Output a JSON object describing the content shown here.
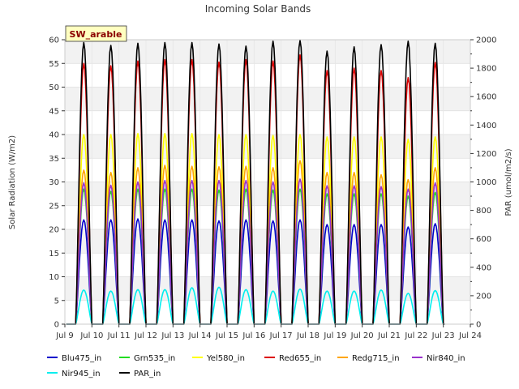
{
  "chart_data": {
    "type": "line",
    "title": "Incoming Solar Bands",
    "site_label": "SW_arable",
    "ylabel": "Solar Radiation (W/m2)",
    "y2label": "PAR (umol/m2/s)",
    "xlabel": "",
    "xlim": [
      9,
      24
    ],
    "ylim": [
      0,
      60
    ],
    "y2lim": [
      0,
      2000
    ],
    "x_ticks": [
      {
        "value": 9,
        "label": "Jul 9"
      },
      {
        "value": 10,
        "label": "Jul 10"
      },
      {
        "value": 11,
        "label": "Jul 11"
      },
      {
        "value": 12,
        "label": "Jul 12"
      },
      {
        "value": 13,
        "label": "Jul 13"
      },
      {
        "value": 14,
        "label": "Jul 14"
      },
      {
        "value": 15,
        "label": "Jul 15"
      },
      {
        "value": 16,
        "label": "Jul 16"
      },
      {
        "value": 17,
        "label": "Jul 17"
      },
      {
        "value": 18,
        "label": "Jul 18"
      },
      {
        "value": 19,
        "label": "Jul 19"
      },
      {
        "value": 20,
        "label": "Jul 20"
      },
      {
        "value": 21,
        "label": "Jul 21"
      },
      {
        "value": 22,
        "label": "Jul 22"
      },
      {
        "value": 23,
        "label": "Jul 23"
      },
      {
        "value": 24,
        "label": "Jul 24"
      }
    ],
    "y_ticks": [
      0,
      5,
      10,
      15,
      20,
      25,
      30,
      35,
      40,
      45,
      50,
      55,
      60
    ],
    "y2_ticks": [
      0,
      200,
      400,
      600,
      800,
      1000,
      1200,
      1400,
      1600,
      1800,
      2000
    ],
    "days": [
      9.7,
      10.7,
      11.7,
      12.7,
      13.7,
      14.7,
      15.7,
      16.7,
      17.7,
      18.7,
      19.7,
      20.7,
      21.7,
      22.7
    ],
    "day_half_width": 0.3,
    "series": [
      {
        "name": "Blu475_in",
        "color": "#0000cc",
        "axis": "left",
        "peaks": [
          22,
          22,
          22.2,
          22,
          22,
          21.8,
          22,
          21.8,
          22,
          21,
          21,
          21,
          20.5,
          21.2
        ]
      },
      {
        "name": "Grn535_in",
        "color": "#22dd22",
        "axis": "left",
        "peaks": [
          28.5,
          28,
          28.5,
          28.5,
          28.5,
          28.3,
          28.5,
          28.3,
          28.5,
          27.5,
          27.5,
          27.5,
          27,
          27.8
        ]
      },
      {
        "name": "Yel580_in",
        "color": "#ffff00",
        "axis": "left",
        "peaks": [
          40,
          40,
          40.2,
          40.2,
          40.2,
          40,
          40,
          39.8,
          40,
          39.5,
          39.5,
          39.5,
          39,
          39.5
        ]
      },
      {
        "name": "Red655_in",
        "color": "#dd0000",
        "axis": "left",
        "peaks": [
          55,
          54.5,
          55.5,
          55.8,
          55.8,
          55.3,
          55.8,
          55.5,
          56.8,
          53.5,
          54,
          53.5,
          52,
          55.2
        ]
      },
      {
        "name": "Redg715_in",
        "color": "#ffa500",
        "axis": "left",
        "peaks": [
          32.5,
          32,
          33,
          33.5,
          33.3,
          33.2,
          33.3,
          33,
          34.5,
          32,
          32,
          31.5,
          30.5,
          33
        ]
      },
      {
        "name": "Nir840_in",
        "color": "#9932cc",
        "axis": "left",
        "peaks": [
          29.8,
          29.3,
          30,
          30.3,
          30.3,
          30.3,
          30.3,
          30,
          30.6,
          29.2,
          29.2,
          29,
          28.5,
          29.8
        ]
      },
      {
        "name": "Nir945_in",
        "color": "#00eeee",
        "axis": "left",
        "peaks": [
          7.2,
          7,
          7.3,
          7.3,
          7.7,
          7.8,
          7.3,
          7,
          7.4,
          7,
          7,
          7.2,
          6.5,
          7.1
        ]
      },
      {
        "name": "PAR_in",
        "color": "#000000",
        "axis": "right",
        "peaks": [
          1980,
          1960,
          1975,
          1980,
          1980,
          1970,
          1955,
          1990,
          1995,
          1920,
          1950,
          1965,
          1990,
          1975
        ]
      }
    ]
  }
}
